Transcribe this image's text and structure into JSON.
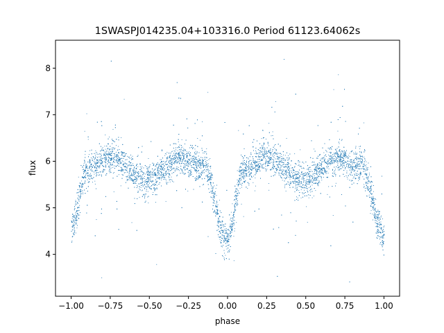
{
  "chart_data": {
    "type": "scatter",
    "title": "1SWASPJ014235.04+103316.0 Period 61123.64062s",
    "xlabel": "phase",
    "ylabel": "flux",
    "xlim": [
      -1.1,
      1.1
    ],
    "ylim": [
      3.1,
      8.6
    ],
    "xticks": [
      -1.0,
      -0.75,
      -0.5,
      -0.25,
      0.0,
      0.25,
      0.5,
      0.75,
      1.0
    ],
    "xtick_labels": [
      "−1.00",
      "−0.75",
      "−0.50",
      "−0.25",
      "0.00",
      "0.25",
      "0.50",
      "0.75",
      "1.00"
    ],
    "yticks": [
      4,
      5,
      6,
      7,
      8
    ],
    "ytick_labels": [
      "4",
      "5",
      "6",
      "7",
      "8"
    ],
    "grid": false,
    "marker_color": "#1f77b4",
    "series": [
      {
        "phase_range": [
          -1.0,
          1.0
        ],
        "period": 1.0,
        "description_points": [
          {
            "x": -1.0,
            "y": 4.6
          },
          {
            "x": -0.9,
            "y": 5.8
          },
          {
            "x": -0.75,
            "y": 6.1
          },
          {
            "x": -0.52,
            "y": 5.6
          },
          {
            "x": -0.3,
            "y": 6.05
          },
          {
            "x": -0.15,
            "y": 5.9
          },
          {
            "x": -0.02,
            "y": 4.4
          },
          {
            "x": 0.0,
            "y": 4.4
          },
          {
            "x": 0.1,
            "y": 5.8
          },
          {
            "x": 0.25,
            "y": 6.1
          },
          {
            "x": 0.48,
            "y": 5.6
          },
          {
            "x": 0.7,
            "y": 6.05
          },
          {
            "x": 0.85,
            "y": 5.9
          },
          {
            "x": 1.0,
            "y": 4.4
          }
        ]
      }
    ]
  }
}
